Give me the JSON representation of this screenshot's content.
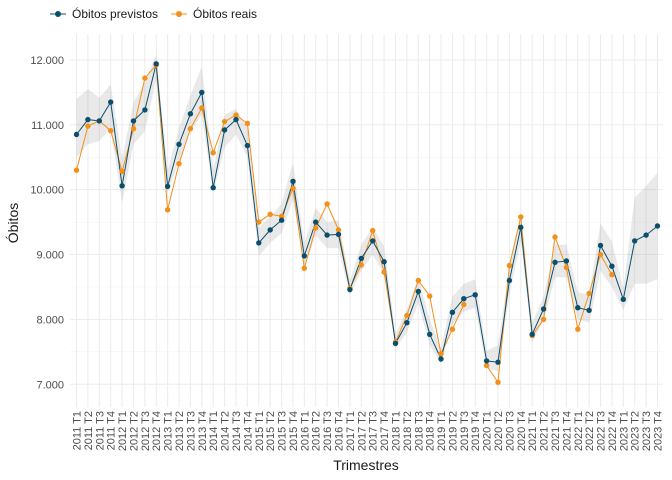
{
  "chart_data": {
    "type": "line",
    "xlabel": "Trimestres",
    "ylabel": "Óbitos",
    "ylim": [
      6650,
      12400
    ],
    "yticks": [
      7000,
      8000,
      9000,
      10000,
      11000,
      12000
    ],
    "ytick_labels": [
      "7.000",
      "8.000",
      "9.000",
      "10.000",
      "11.000",
      "12.000"
    ],
    "grid": true,
    "legend_position": "top-left",
    "categories": [
      "2011 T1",
      "2011 T2",
      "2011 T3",
      "2011 T4",
      "2012 T1",
      "2012 T2",
      "2012 T3",
      "2012 T4",
      "2013 T1",
      "2013 T2",
      "2013 T3",
      "2013 T4",
      "2014 T1",
      "2014 T2",
      "2014 T3",
      "2014 T4",
      "2015 T1",
      "2015 T2",
      "2015 T3",
      "2015 T4",
      "2016 T1",
      "2016 T2",
      "2016 T3",
      "2016 T4",
      "2017 T1",
      "2017 T2",
      "2017 T3",
      "2017 T4",
      "2018 T1",
      "2018 T2",
      "2018 T3",
      "2018 T4",
      "2019 T1",
      "2019 T2",
      "2019 T3",
      "2019 T4",
      "2020 T1",
      "2020 T2",
      "2020 T3",
      "2020 T4",
      "2021 T1",
      "2021 T2",
      "2021 T3",
      "2021 T4",
      "2022 T1",
      "2022 T2",
      "2022 T3",
      "2022 T4",
      "2023 T1",
      "2023 T2",
      "2023 T3",
      "2023 T4"
    ],
    "series": [
      {
        "name": "Óbitos previstos",
        "color": "#0b4f6c",
        "values": [
          10850,
          11080,
          11060,
          11350,
          10060,
          11060,
          11230,
          11940,
          10050,
          10700,
          11170,
          11500,
          10030,
          10920,
          11080,
          10680,
          9180,
          9380,
          9530,
          10130,
          8980,
          9500,
          9300,
          9310,
          8460,
          8940,
          9210,
          8890,
          7630,
          7950,
          8430,
          7770,
          7390,
          8110,
          8320,
          8380,
          7360,
          7340,
          8600,
          9420,
          7770,
          8160,
          8880,
          8900,
          8180,
          8140,
          9140,
          8820,
          8310,
          9210,
          9300,
          9440
        ]
      },
      {
        "name": "Óbitos reais",
        "color": "#f39019",
        "values": [
          10300,
          10980,
          11060,
          10910,
          10280,
          10940,
          11720,
          11920,
          9690,
          10400,
          10940,
          11260,
          10570,
          11050,
          11150,
          11020,
          9500,
          9620,
          9590,
          10020,
          8790,
          9410,
          9780,
          9380,
          8480,
          8840,
          9370,
          8730,
          7650,
          8060,
          8600,
          8360,
          7470,
          7850,
          8230,
          null,
          7290,
          7030,
          8830,
          9580,
          7750,
          8000,
          9270,
          8800,
          7850,
          8400,
          9000,
          8690,
          null,
          null,
          null,
          null
        ]
      }
    ],
    "interval_lower": [
      10500,
      10700,
      10750,
      10950,
      9800,
      10700,
      10900,
      11700,
      9950,
      10450,
      10900,
      11150,
      9950,
      10650,
      10850,
      10500,
      8980,
      9180,
      9330,
      9850,
      8800,
      9300,
      9100,
      9100,
      8380,
      8750,
      9000,
      8700,
      7550,
      7800,
      8250,
      7600,
      7320,
      7920,
      8120,
      8180,
      7250,
      7200,
      8380,
      9200,
      7650,
      7980,
      8650,
      8650,
      8000,
      7950,
      8750,
      8500,
      8150,
      8550,
      8550,
      8620
    ],
    "interval_upper": [
      11400,
      11550,
      11420,
      11620,
      10480,
      11350,
      11650,
      12080,
      10300,
      10950,
      11450,
      11900,
      10300,
      11150,
      11250,
      10950,
      9420,
      9580,
      9780,
      10420,
      9180,
      9720,
      9500,
      9530,
      8600,
      9150,
      9420,
      9130,
      7780,
      8150,
      8650,
      8000,
      7550,
      8350,
      8550,
      8620,
      7520,
      7600,
      8820,
      9600,
      7950,
      8350,
      9150,
      9150,
      8420,
      8380,
      9480,
      9200,
      8480,
      9880,
      10050,
      10260
    ]
  }
}
